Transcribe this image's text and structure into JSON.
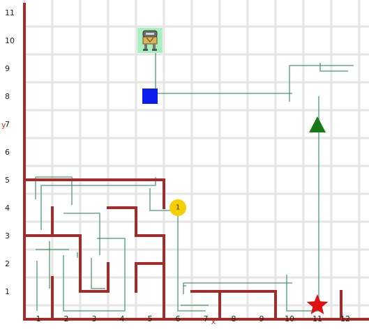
{
  "grid": {
    "x_ticks": [
      "1",
      "2",
      "3",
      "4",
      "5",
      "6",
      "7",
      "8",
      "9",
      "10",
      "11",
      "12"
    ],
    "y_ticks": [
      "1",
      "2",
      "3",
      "4",
      "5",
      "6",
      "7",
      "8",
      "9",
      "10",
      "11"
    ],
    "x_axis_label": "x",
    "y_axis_label": "y",
    "colors": {
      "background": "#ffffff",
      "gridline": "#e6e6e6",
      "wall": "#a52a2a",
      "path": "#2e8b57"
    }
  },
  "walls": [
    [
      [
        0.5,
        0
      ],
      [
        0.5,
        11.3
      ]
    ],
    [
      [
        0.5,
        0
      ],
      [
        13.3,
        0
      ]
    ],
    [
      [
        0.5,
        5
      ],
      [
        5.5,
        5
      ]
    ],
    [
      [
        5.5,
        5
      ],
      [
        5.5,
        4
      ]
    ],
    [
      [
        1.5,
        0
      ],
      [
        1.5,
        1.5
      ]
    ],
    [
      [
        1.5,
        3
      ],
      [
        1.5,
        4
      ]
    ],
    [
      [
        0.5,
        3
      ],
      [
        2.5,
        3
      ]
    ],
    [
      [
        2.5,
        3
      ],
      [
        2.5,
        1
      ]
    ],
    [
      [
        2.5,
        1
      ],
      [
        3.5,
        1
      ]
    ],
    [
      [
        3.5,
        1
      ],
      [
        3.5,
        2
      ]
    ],
    [
      [
        3.5,
        4
      ],
      [
        4.5,
        4
      ]
    ],
    [
      [
        4.5,
        4
      ],
      [
        4.5,
        3
      ]
    ],
    [
      [
        4.5,
        3
      ],
      [
        5.5,
        3
      ]
    ],
    [
      [
        5.5,
        3
      ],
      [
        5.5,
        0
      ]
    ],
    [
      [
        4.5,
        2
      ],
      [
        5.5,
        2
      ]
    ],
    [
      [
        4.5,
        2
      ],
      [
        4.5,
        1
      ]
    ],
    [
      [
        6.5,
        1
      ],
      [
        9.5,
        1
      ]
    ],
    [
      [
        7.5,
        1
      ],
      [
        7.5,
        0
      ]
    ],
    [
      [
        9.5,
        1
      ],
      [
        9.5,
        0
      ]
    ],
    [
      [
        11.85,
        1
      ],
      [
        11.85,
        0
      ]
    ]
  ],
  "paths": [
    [
      [
        5.2,
        10
      ],
      [
        5.2,
        8.1
      ],
      [
        5,
        8.1
      ],
      [
        10.1,
        8.1
      ]
    ],
    [
      [
        10,
        7.8
      ],
      [
        10,
        9.1
      ],
      [
        12.3,
        9.1
      ]
    ],
    [
      [
        11.1,
        9.2
      ],
      [
        11.1,
        8.9
      ],
      [
        12.1,
        8.9
      ]
    ],
    [
      [
        11.05,
        8
      ],
      [
        11.05,
        0.3
      ],
      [
        10.8,
        0.3
      ]
    ],
    [
      [
        0.9,
        4.3
      ],
      [
        0.9,
        5.1
      ],
      [
        2.2,
        5.1
      ],
      [
        2.2,
        4.1
      ]
    ],
    [
      [
        1.1,
        3.2
      ],
      [
        1.1,
        4.8
      ],
      [
        5.2,
        4.8
      ],
      [
        5.2,
        5.1
      ]
    ],
    [
      [
        5,
        4.7
      ],
      [
        5,
        3.9
      ],
      [
        6,
        3.9
      ],
      [
        6,
        0.3
      ],
      [
        7,
        0.3
      ]
    ],
    [
      [
        6.2,
        0.9
      ],
      [
        6.2,
        1.3
      ],
      [
        10.1,
        1.3
      ]
    ],
    [
      [
        6.1,
        0.5
      ],
      [
        7.1,
        0.5
      ]
    ],
    [
      [
        9.9,
        1.6
      ],
      [
        9.9,
        0.3
      ],
      [
        11,
        0.3
      ]
    ],
    [
      [
        6.2,
        1.2
      ],
      [
        6.3,
        1.2
      ]
    ],
    [
      [
        1.9,
        3.8
      ],
      [
        1.9,
        3.8
      ],
      [
        3.2,
        3.8
      ],
      [
        3.2,
        2.3
      ]
    ],
    [
      [
        0.9,
        2.5
      ],
      [
        2.1,
        2.5
      ]
    ],
    [
      [
        1.4,
        2.8
      ],
      [
        1.4,
        1.1
      ]
    ],
    [
      [
        2.9,
        2.2
      ],
      [
        2.9,
        1.1
      ],
      [
        3.4,
        1.1
      ]
    ],
    [
      [
        2.4,
        2.2
      ],
      [
        2.4,
        2.4
      ]
    ],
    [
      [
        3.1,
        2.9
      ],
      [
        4.1,
        2.9
      ],
      [
        4.1,
        0.3
      ],
      [
        1.9,
        0.3
      ],
      [
        1.9,
        2.3
      ]
    ],
    [
      [
        0.95,
        2.1
      ],
      [
        0.95,
        0.3
      ]
    ]
  ],
  "entities": {
    "agent": {
      "x": 5,
      "y": 10,
      "icon": "robot-icon",
      "bg": "#a8f0c0"
    },
    "blue_box": {
      "x": 5,
      "y": 8,
      "icon": "blue-square-icon",
      "color": "#0a1ef0"
    },
    "goal_triangle": {
      "x": 11,
      "y": 6.95,
      "icon": "green-triangle-icon",
      "color": "#1a7a1a"
    },
    "coin": {
      "x": 6,
      "y": 4,
      "label": "1",
      "icon": "yellow-coin-icon",
      "color": "#f5d000"
    },
    "star": {
      "x": 11,
      "y": 0.5,
      "icon": "red-star-icon",
      "color": "#e01010"
    }
  }
}
